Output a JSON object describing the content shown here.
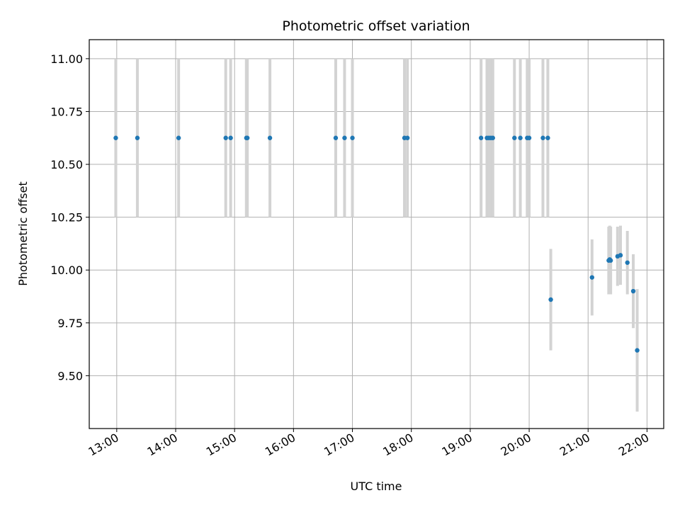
{
  "chart_data": {
    "type": "scatter",
    "title": "Photometric offset variation",
    "xlabel": "UTC time",
    "ylabel": "Photometric offset",
    "xlim": [
      "12:32",
      "22:17"
    ],
    "ylim": [
      9.25,
      11.09
    ],
    "xticks": [
      "13:00",
      "14:00",
      "15:00",
      "16:00",
      "17:00",
      "18:00",
      "19:00",
      "20:00",
      "21:00",
      "22:00"
    ],
    "yticks": [
      9.5,
      9.75,
      10.0,
      10.25,
      10.5,
      10.75,
      11.0
    ],
    "ytick_labels": [
      "9.50",
      "9.75",
      "10.00",
      "10.25",
      "10.50",
      "10.75",
      "11.00"
    ],
    "grid": true,
    "marker_color": "#1f77b4",
    "errorbar_color": "#d3d3d3",
    "points": [
      {
        "x": "12:59",
        "y": 10.625,
        "err": 0.375
      },
      {
        "x": "13:21",
        "y": 10.625,
        "err": 0.375
      },
      {
        "x": "14:03",
        "y": 10.625,
        "err": 0.375
      },
      {
        "x": "14:51",
        "y": 10.625,
        "err": 0.375
      },
      {
        "x": "14:56",
        "y": 10.625,
        "err": 0.375
      },
      {
        "x": "15:12",
        "y": 10.625,
        "err": 0.375
      },
      {
        "x": "15:13",
        "y": 10.625,
        "err": 0.375
      },
      {
        "x": "15:36",
        "y": 10.625,
        "err": 0.375
      },
      {
        "x": "16:43",
        "y": 10.625,
        "err": 0.375
      },
      {
        "x": "16:52",
        "y": 10.625,
        "err": 0.375
      },
      {
        "x": "17:00",
        "y": 10.625,
        "err": 0.375
      },
      {
        "x": "17:53",
        "y": 10.625,
        "err": 0.375
      },
      {
        "x": "17:56",
        "y": 10.625,
        "err": 0.375
      },
      {
        "x": "19:11",
        "y": 10.625,
        "err": 0.375
      },
      {
        "x": "19:17",
        "y": 10.625,
        "err": 0.375
      },
      {
        "x": "19:19",
        "y": 10.625,
        "err": 0.375
      },
      {
        "x": "19:21",
        "y": 10.625,
        "err": 0.375
      },
      {
        "x": "19:23",
        "y": 10.625,
        "err": 0.375
      },
      {
        "x": "19:45",
        "y": 10.625,
        "err": 0.375
      },
      {
        "x": "19:51",
        "y": 10.625,
        "err": 0.375
      },
      {
        "x": "19:58",
        "y": 10.625,
        "err": 0.375
      },
      {
        "x": "20:00",
        "y": 10.625,
        "err": 0.375
      },
      {
        "x": "20:14",
        "y": 10.625,
        "err": 0.375
      },
      {
        "x": "20:19",
        "y": 10.625,
        "err": 0.375
      },
      {
        "x": "20:22",
        "y": 9.86,
        "err": 0.24
      },
      {
        "x": "21:04",
        "y": 9.965,
        "err": 0.18
      },
      {
        "x": "21:21",
        "y": 10.045,
        "err": 0.16
      },
      {
        "x": "21:22",
        "y": 10.05,
        "err": 0.16
      },
      {
        "x": "21:23",
        "y": 10.045,
        "err": 0.16
      },
      {
        "x": "21:30",
        "y": 10.065,
        "err": 0.14
      },
      {
        "x": "21:33",
        "y": 10.07,
        "err": 0.14
      },
      {
        "x": "21:40",
        "y": 10.035,
        "err": 0.15
      },
      {
        "x": "21:46",
        "y": 9.9,
        "err": 0.175
      },
      {
        "x": "21:50",
        "y": 9.62,
        "err": 0.29
      }
    ]
  }
}
